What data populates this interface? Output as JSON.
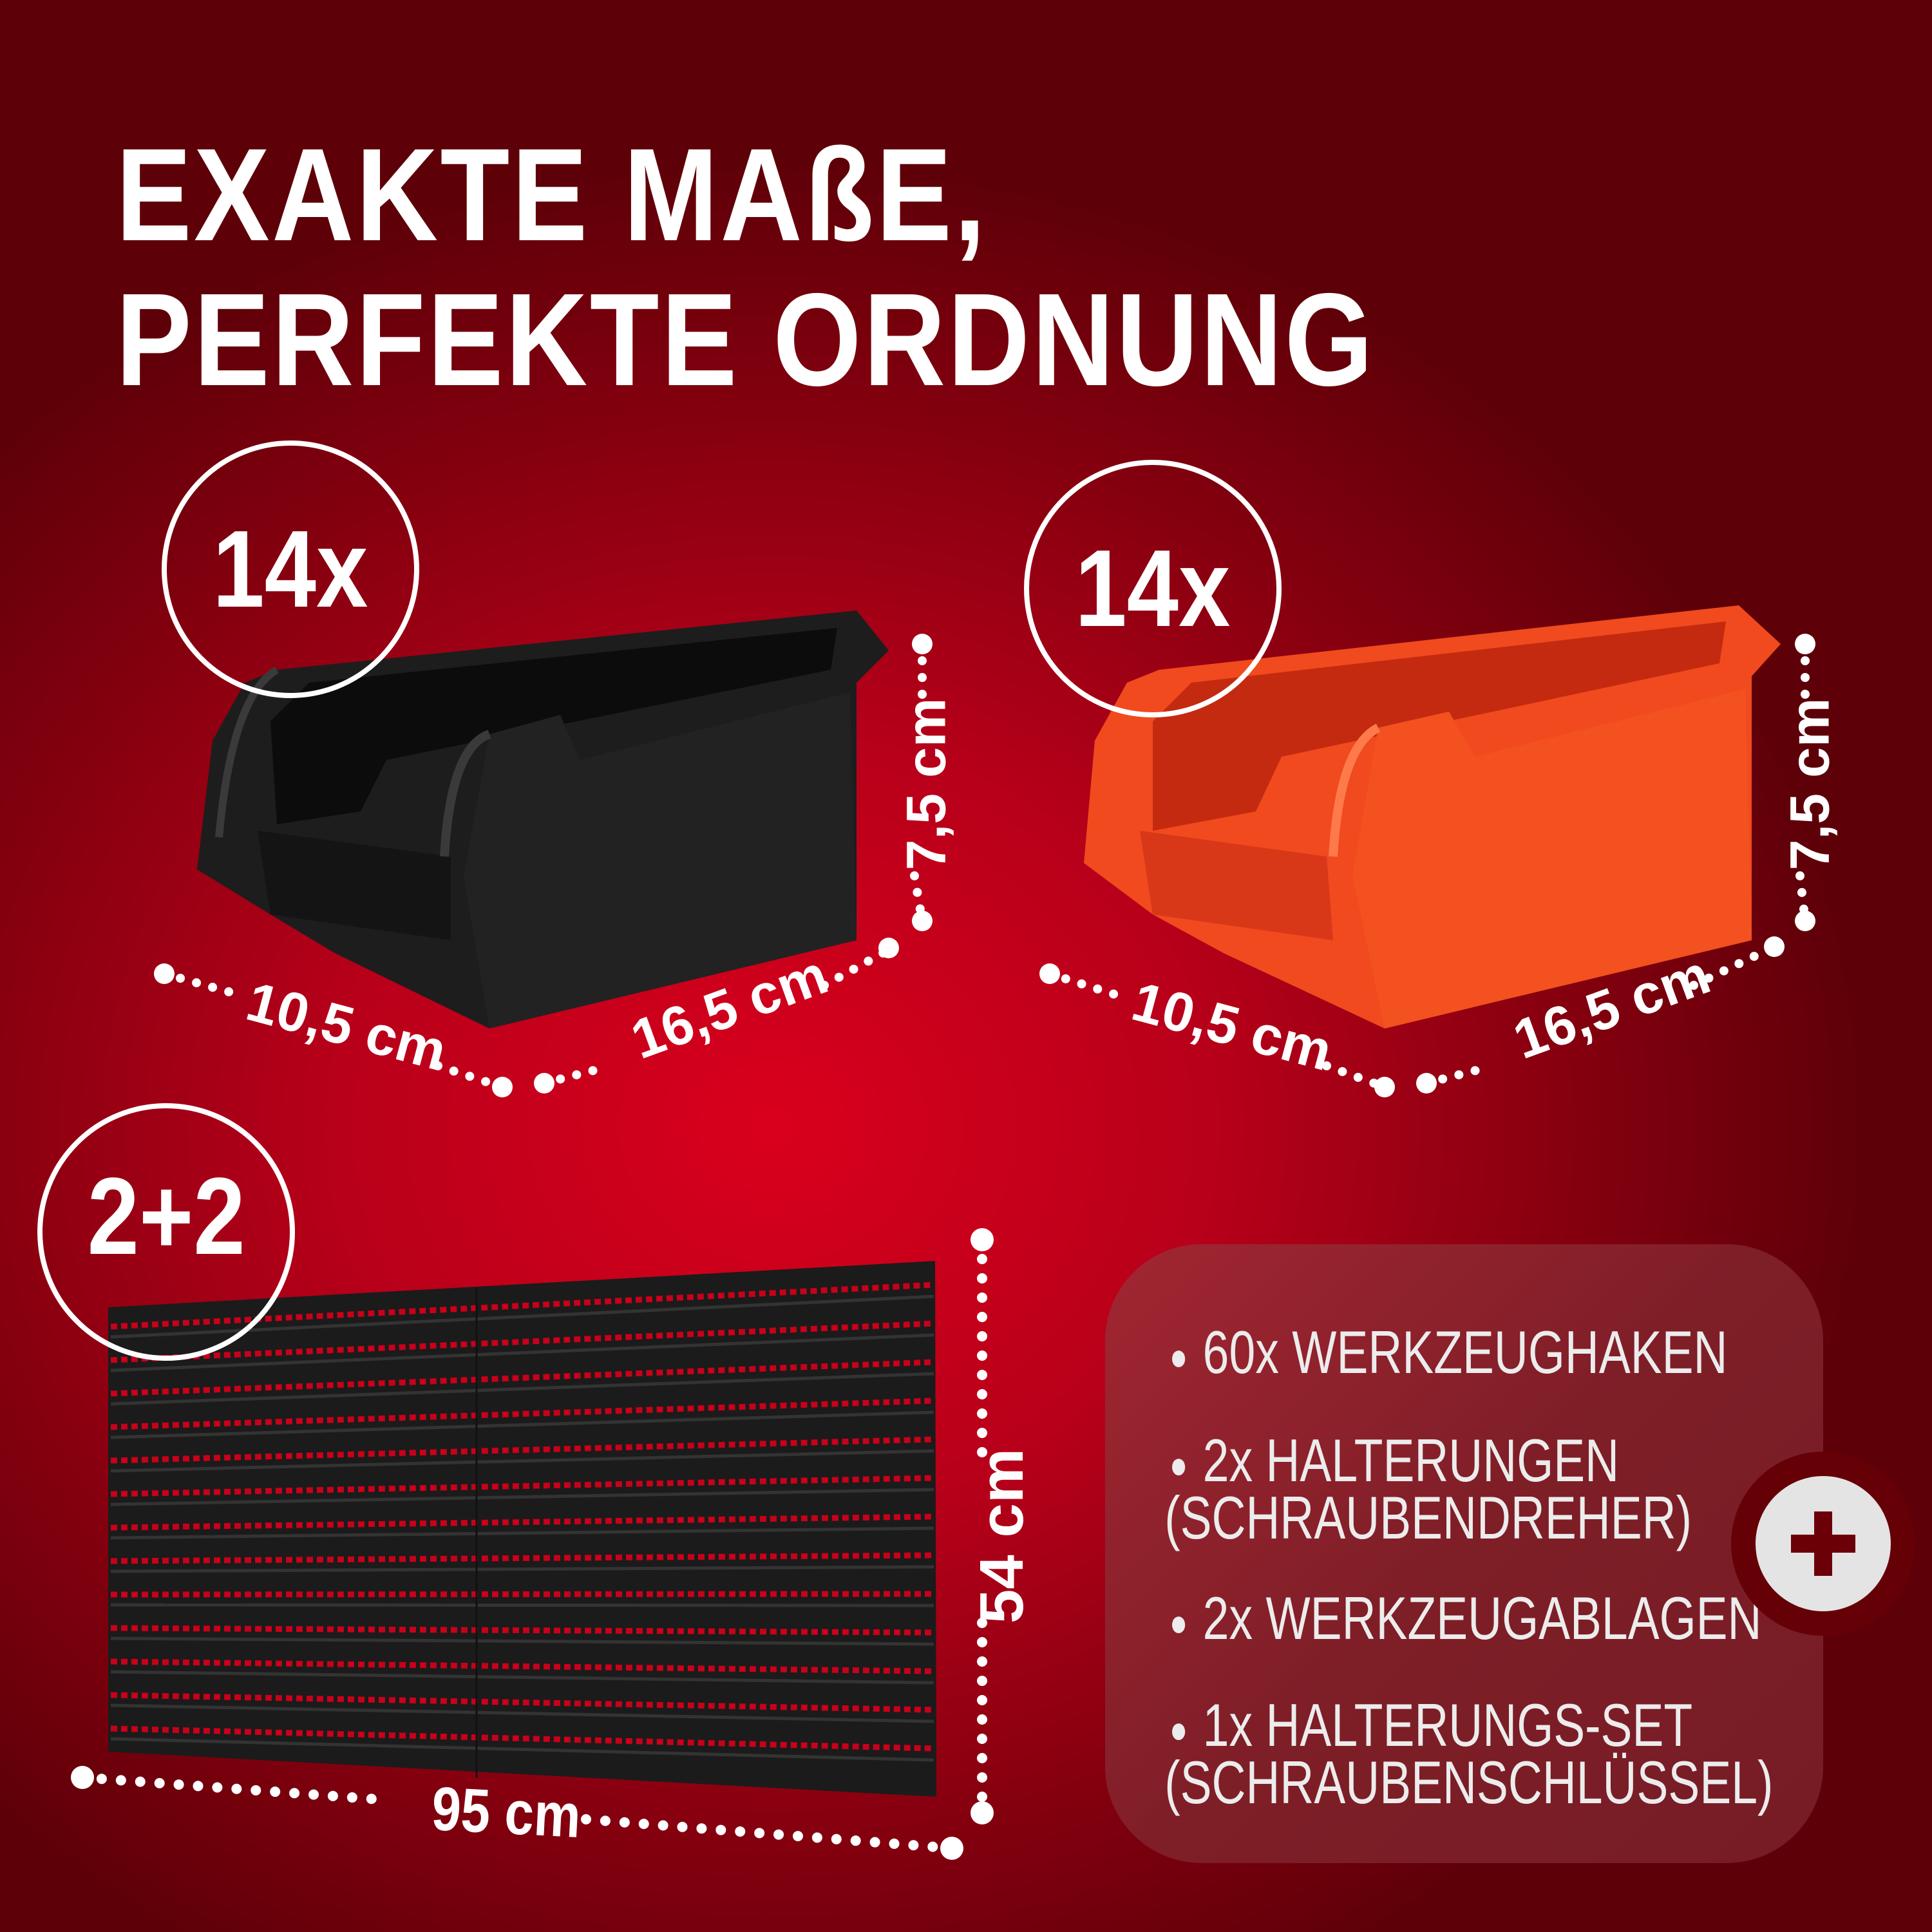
{
  "headline": {
    "line1": "EXAKTE MAßE,",
    "line2": "PERFEKTE ORDNUNG"
  },
  "bins": [
    {
      "count": "14x",
      "color": "black",
      "depth": "10,5 cm",
      "width": "16,5 cm",
      "height": "7,5 cm"
    },
    {
      "count": "14x",
      "color": "orange",
      "depth": "10,5 cm",
      "width": "16,5 cm",
      "height": "7,5 cm"
    }
  ],
  "panel": {
    "count": "2+2",
    "width": "95 cm",
    "height": "54 cm"
  },
  "extras": {
    "icon": "plus-icon",
    "items": [
      {
        "line1": "60x WERKZEUGHAKEN"
      },
      {
        "line1": "2x HALTERUNGEN",
        "line2": "(SCHRAUBENDREHER)"
      },
      {
        "line1": "2x WERKZEUGABLAGEN"
      },
      {
        "line1": "1x HALTERUNGS-SET",
        "line2": "(SCHRAUBENSCHLÜSSEL)"
      }
    ]
  },
  "colors": {
    "background": "#c8001a",
    "box": "#7e1e27",
    "orange_bin": "#f0441c",
    "black_bin": "#1a1a1a",
    "text": "#ffffff"
  }
}
